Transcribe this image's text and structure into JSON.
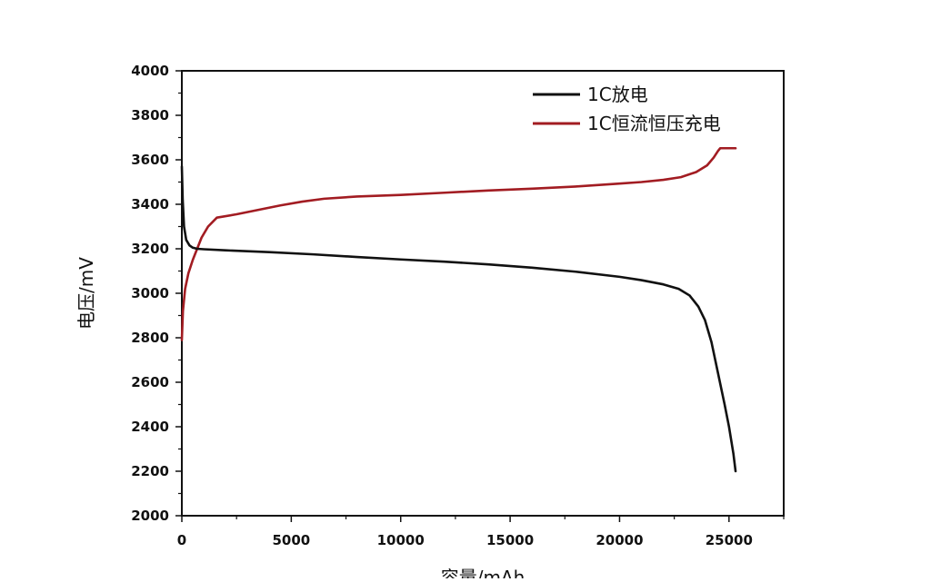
{
  "chart_data": {
    "type": "line",
    "xlabel": "容量/mAh",
    "ylabel": "电压/mV",
    "xlim": [
      0,
      27500
    ],
    "ylim": [
      2000,
      4000
    ],
    "x_ticks": [
      0,
      5000,
      10000,
      15000,
      20000,
      25000
    ],
    "y_ticks": [
      2000,
      2200,
      2400,
      2600,
      2800,
      3000,
      3200,
      3400,
      3600,
      3800,
      4000
    ],
    "x_tick_labels": [
      "0",
      "5000",
      "10000",
      "15000",
      "20000",
      "25000"
    ],
    "y_tick_labels": [
      "2000",
      "2200",
      "2400",
      "2600",
      "2800",
      "3000",
      "3200",
      "3400",
      "3600",
      "3800",
      "4000"
    ],
    "grid": false,
    "legend_position": "top-right",
    "series": [
      {
        "name": "1C放电",
        "color": "#111111",
        "x": [
          0,
          40,
          100,
          200,
          350,
          500,
          700,
          1000,
          2000,
          4000,
          6000,
          8000,
          10000,
          12000,
          14000,
          16000,
          18000,
          20000,
          21000,
          22000,
          22700,
          23200,
          23600,
          23900,
          24200,
          24500,
          24800,
          25000,
          25200,
          25300
        ],
        "y": [
          3570,
          3420,
          3300,
          3240,
          3215,
          3205,
          3200,
          3198,
          3193,
          3185,
          3175,
          3163,
          3152,
          3142,
          3130,
          3115,
          3097,
          3074,
          3059,
          3040,
          3020,
          2990,
          2940,
          2880,
          2780,
          2640,
          2500,
          2400,
          2280,
          2200
        ]
      },
      {
        "name": "1C恒流恒压充电",
        "color": "#a21c22",
        "x": [
          0,
          50,
          150,
          300,
          500,
          700,
          900,
          1200,
          1600,
          2500,
          3500,
          4500,
          5500,
          6500,
          8000,
          10000,
          12000,
          14000,
          16000,
          18000,
          20000,
          21000,
          22000,
          22800,
          23500,
          24000,
          24300,
          24500,
          24600,
          25000,
          25300
        ],
        "y": [
          2790,
          2920,
          3020,
          3090,
          3150,
          3200,
          3250,
          3300,
          3340,
          3355,
          3375,
          3395,
          3412,
          3425,
          3435,
          3442,
          3452,
          3462,
          3470,
          3480,
          3493,
          3500,
          3510,
          3522,
          3545,
          3575,
          3610,
          3640,
          3652,
          3652,
          3652
        ]
      }
    ]
  }
}
